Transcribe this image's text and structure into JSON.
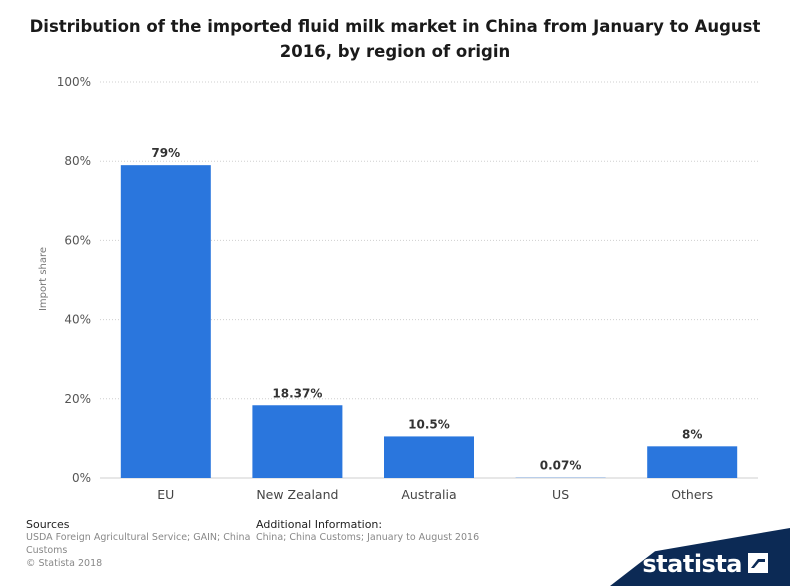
{
  "title": "Distribution of the imported fluid milk market in China from January to August 2016, by region of origin",
  "footer": {
    "sources_heading": "Sources",
    "sources_text": "USDA Foreign Agricultural Service; GAIN; China Customs",
    "copyright": "© Statista 2018",
    "additional_heading": "Additional Information:",
    "additional_text": "China; China Customs; January to August 2016"
  },
  "brand": {
    "name": "statista",
    "icon": "statista-logo-icon",
    "color": "#0c2a55"
  },
  "chart_data": {
    "type": "bar",
    "categories": [
      "EU",
      "New Zealand",
      "Australia",
      "US",
      "Others"
    ],
    "values": [
      79,
      18.37,
      10.5,
      0.07,
      8
    ],
    "value_labels": [
      "79%",
      "18.37%",
      "10.5%",
      "0.07%",
      "8%"
    ],
    "ylabel": "Import share",
    "ylim": [
      0,
      100
    ],
    "yticks": [
      0,
      20,
      40,
      60,
      80,
      100
    ],
    "ytick_labels": [
      "0%",
      "20%",
      "40%",
      "60%",
      "80%",
      "100%"
    ],
    "grid": true,
    "bar_color": "#2a76dd"
  }
}
